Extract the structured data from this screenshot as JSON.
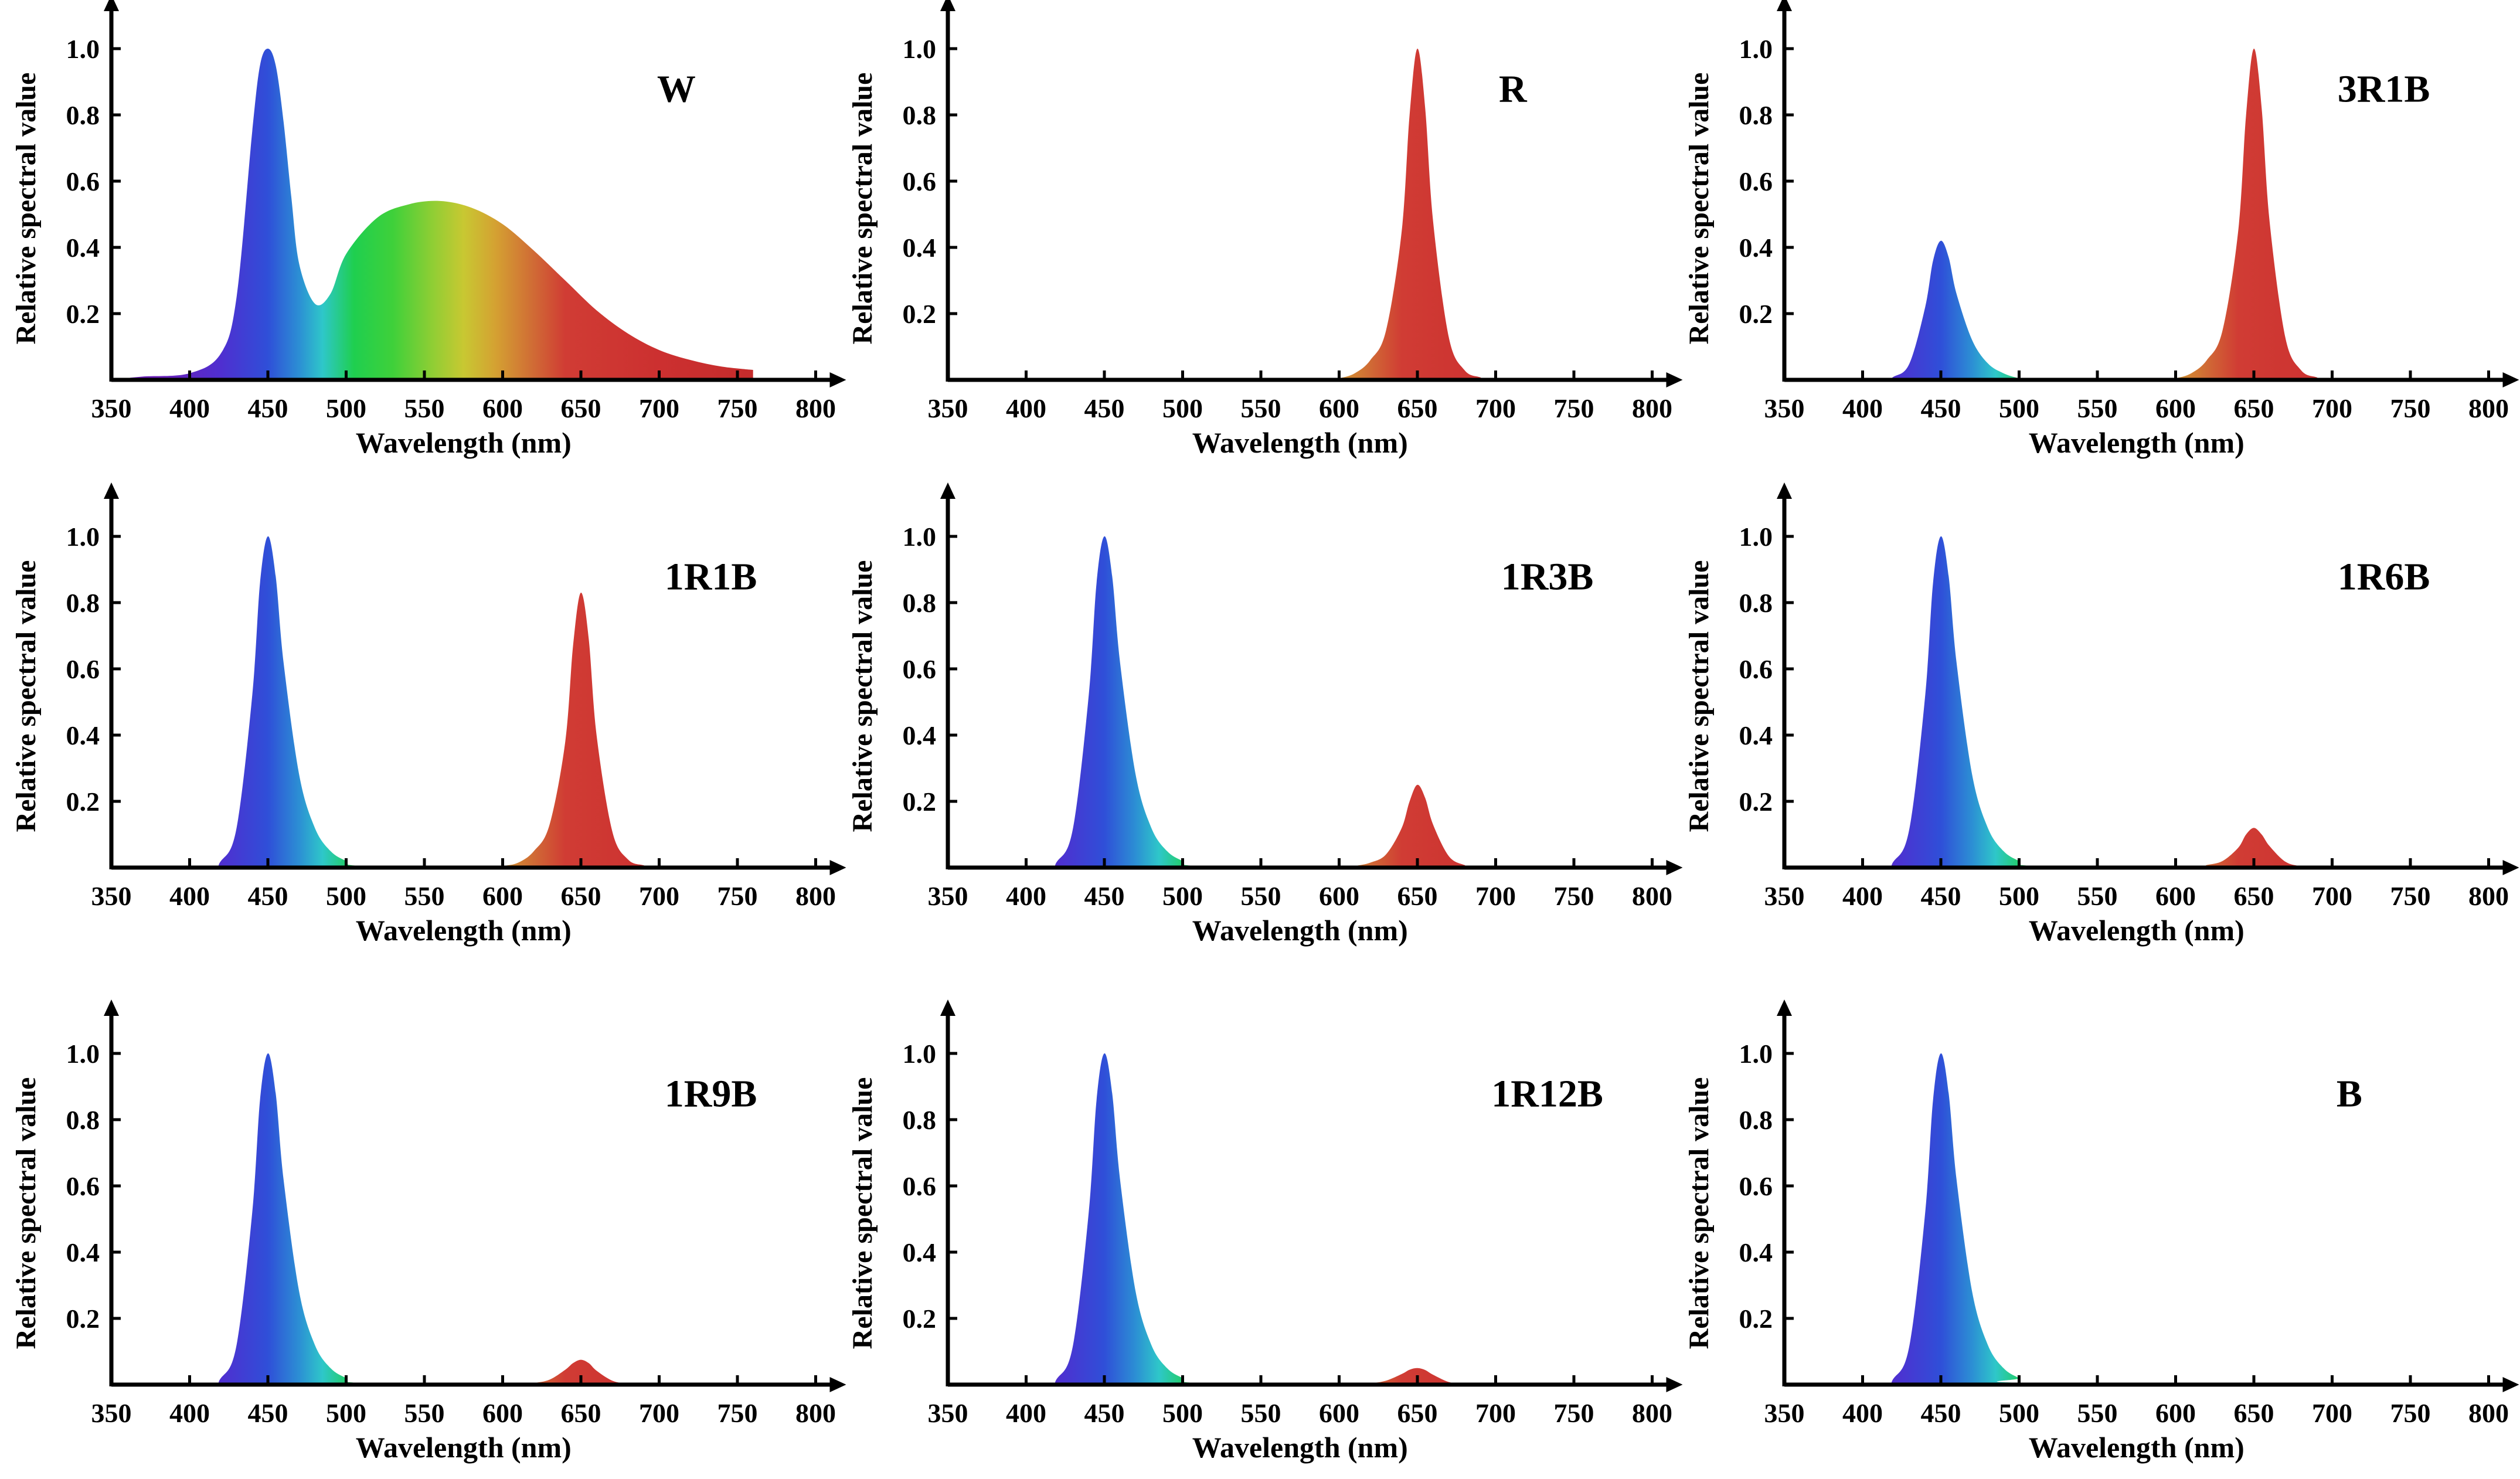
{
  "figure": {
    "colors": {
      "axis": "#000000",
      "spectrum_stops": [
        {
          "nm": 380,
          "color": "#6a1fb8"
        },
        {
          "nm": 420,
          "color": "#4f2fd0"
        },
        {
          "nm": 450,
          "color": "#2f4fd8"
        },
        {
          "nm": 470,
          "color": "#2c8fd4"
        },
        {
          "nm": 485,
          "color": "#2ec7c9"
        },
        {
          "nm": 505,
          "color": "#1fcf4f"
        },
        {
          "nm": 530,
          "color": "#3fd03a"
        },
        {
          "nm": 555,
          "color": "#8fce34"
        },
        {
          "nm": 575,
          "color": "#c8c832"
        },
        {
          "nm": 595,
          "color": "#d4a232"
        },
        {
          "nm": 620,
          "color": "#d06a35"
        },
        {
          "nm": 640,
          "color": "#d03c34"
        },
        {
          "nm": 700,
          "color": "#cc3030"
        },
        {
          "nm": 780,
          "color": "#c22a2a"
        }
      ]
    }
  },
  "chart_data": [
    {
      "type": "area",
      "label": "W",
      "xlabel": "Wavelength (nm)",
      "ylabel": "Relative spectral value",
      "xlim": [
        350,
        800
      ],
      "ylim": [
        0,
        1.08
      ],
      "xticks": [
        "350",
        "400",
        "450",
        "500",
        "550",
        "600",
        "650",
        "700",
        "750",
        "800"
      ],
      "yticks": [
        "0.2",
        "0.4",
        "0.6",
        "0.8",
        "1.0"
      ],
      "x": [
        350,
        370,
        400,
        420,
        430,
        440,
        445,
        450,
        455,
        460,
        465,
        470,
        480,
        490,
        500,
        520,
        540,
        560,
        580,
        600,
        620,
        640,
        660,
        680,
        700,
        720,
        740,
        760
      ],
      "y": [
        0,
        0.01,
        0.02,
        0.08,
        0.25,
        0.75,
        0.95,
        1.0,
        0.95,
        0.78,
        0.55,
        0.35,
        0.23,
        0.26,
        0.38,
        0.49,
        0.53,
        0.54,
        0.52,
        0.47,
        0.39,
        0.3,
        0.21,
        0.14,
        0.09,
        0.06,
        0.04,
        0.03
      ]
    },
    {
      "type": "area",
      "label": "R",
      "xlabel": "Wavelength (nm)",
      "ylabel": "Relative spectral value",
      "xlim": [
        350,
        800
      ],
      "ylim": [
        0,
        1.08
      ],
      "xticks": [
        "350",
        "400",
        "450",
        "500",
        "550",
        "600",
        "650",
        "700",
        "750",
        "800"
      ],
      "yticks": [
        "0.2",
        "0.4",
        "0.6",
        "0.8",
        "1.0"
      ],
      "x": [
        350,
        590,
        600,
        610,
        620,
        630,
        640,
        645,
        650,
        655,
        660,
        670,
        680,
        690,
        700,
        800
      ],
      "y": [
        0,
        0,
        0.005,
        0.02,
        0.06,
        0.15,
        0.45,
        0.8,
        1.0,
        0.82,
        0.48,
        0.13,
        0.03,
        0.008,
        0,
        0
      ]
    },
    {
      "type": "area",
      "label": "3R1B",
      "xlabel": "Wavelength (nm)",
      "ylabel": "Relative spectral value",
      "xlim": [
        350,
        800
      ],
      "ylim": [
        0,
        1.08
      ],
      "xticks": [
        "350",
        "400",
        "450",
        "500",
        "550",
        "600",
        "650",
        "700",
        "750",
        "800"
      ],
      "yticks": [
        "0.2",
        "0.4",
        "0.6",
        "0.8",
        "1.0"
      ],
      "x": [
        350,
        410,
        420,
        430,
        440,
        445,
        450,
        455,
        460,
        470,
        480,
        490,
        500,
        510,
        590,
        600,
        610,
        620,
        630,
        640,
        645,
        650,
        655,
        660,
        670,
        680,
        690,
        700,
        800
      ],
      "y": [
        0,
        0,
        0.01,
        0.05,
        0.22,
        0.36,
        0.42,
        0.37,
        0.26,
        0.12,
        0.05,
        0.02,
        0.005,
        0,
        0,
        0.005,
        0.02,
        0.06,
        0.15,
        0.45,
        0.8,
        1.0,
        0.82,
        0.48,
        0.13,
        0.03,
        0.008,
        0,
        0
      ]
    },
    {
      "type": "area",
      "label": "1R1B",
      "xlabel": "Wavelength (nm)",
      "ylabel": "Relative spectral value",
      "xlim": [
        350,
        800
      ],
      "ylim": [
        0,
        1.08
      ],
      "xticks": [
        "350",
        "400",
        "450",
        "500",
        "550",
        "600",
        "650",
        "700",
        "750",
        "800"
      ],
      "yticks": [
        "0.2",
        "0.4",
        "0.6",
        "0.8",
        "1.0"
      ],
      "x": [
        350,
        410,
        420,
        430,
        440,
        445,
        450,
        455,
        460,
        470,
        480,
        490,
        500,
        510,
        590,
        600,
        610,
        620,
        630,
        640,
        645,
        650,
        655,
        660,
        670,
        680,
        690,
        700,
        800
      ],
      "y": [
        0,
        0,
        0.02,
        0.12,
        0.52,
        0.86,
        1.0,
        0.88,
        0.62,
        0.28,
        0.12,
        0.05,
        0.02,
        0.005,
        0,
        0.005,
        0.015,
        0.05,
        0.13,
        0.38,
        0.67,
        0.83,
        0.69,
        0.4,
        0.11,
        0.025,
        0.007,
        0,
        0
      ]
    },
    {
      "type": "area",
      "label": "1R3B",
      "xlabel": "Wavelength (nm)",
      "ylabel": "Relative spectral value",
      "xlim": [
        350,
        800
      ],
      "ylim": [
        0,
        1.08
      ],
      "xticks": [
        "350",
        "400",
        "450",
        "500",
        "550",
        "600",
        "650",
        "700",
        "750",
        "800"
      ],
      "yticks": [
        "0.2",
        "0.4",
        "0.6",
        "0.8",
        "1.0"
      ],
      "x": [
        350,
        410,
        420,
        430,
        440,
        445,
        450,
        455,
        460,
        470,
        480,
        490,
        500,
        510,
        600,
        610,
        620,
        630,
        640,
        645,
        650,
        655,
        660,
        670,
        680,
        690,
        800
      ],
      "y": [
        0,
        0,
        0.02,
        0.12,
        0.52,
        0.86,
        1.0,
        0.88,
        0.62,
        0.28,
        0.12,
        0.05,
        0.02,
        0.005,
        0,
        0.005,
        0.015,
        0.04,
        0.12,
        0.2,
        0.25,
        0.21,
        0.13,
        0.035,
        0.008,
        0,
        0
      ]
    },
    {
      "type": "area",
      "label": "1R6B",
      "xlabel": "Wavelength (nm)",
      "ylabel": "Relative spectral value",
      "xlim": [
        350,
        800
      ],
      "ylim": [
        0,
        1.08
      ],
      "xticks": [
        "350",
        "400",
        "450",
        "500",
        "550",
        "600",
        "650",
        "700",
        "750",
        "800"
      ],
      "yticks": [
        "0.2",
        "0.4",
        "0.6",
        "0.8",
        "1.0"
      ],
      "x": [
        350,
        410,
        420,
        430,
        440,
        445,
        450,
        455,
        460,
        470,
        480,
        490,
        500,
        510,
        610,
        620,
        630,
        640,
        645,
        650,
        655,
        660,
        670,
        680,
        690,
        800
      ],
      "y": [
        0,
        0,
        0.02,
        0.12,
        0.52,
        0.86,
        1.0,
        0.88,
        0.62,
        0.28,
        0.12,
        0.05,
        0.02,
        0.005,
        0,
        0.008,
        0.02,
        0.06,
        0.1,
        0.12,
        0.1,
        0.065,
        0.018,
        0.004,
        0,
        0
      ]
    },
    {
      "type": "area",
      "label": "1R9B",
      "xlabel": "Wavelength (nm)",
      "ylabel": "Relative spectral value",
      "xlim": [
        350,
        800
      ],
      "ylim": [
        0,
        1.08
      ],
      "xticks": [
        "350",
        "400",
        "450",
        "500",
        "550",
        "600",
        "650",
        "700",
        "750",
        "800"
      ],
      "yticks": [
        "0.2",
        "0.4",
        "0.6",
        "0.8",
        "1.0"
      ],
      "x": [
        350,
        410,
        420,
        430,
        440,
        445,
        450,
        455,
        460,
        470,
        480,
        490,
        500,
        510,
        610,
        620,
        630,
        640,
        645,
        650,
        655,
        660,
        670,
        680,
        690,
        800
      ],
      "y": [
        0,
        0,
        0.02,
        0.12,
        0.52,
        0.86,
        1.0,
        0.88,
        0.62,
        0.28,
        0.12,
        0.05,
        0.02,
        0.005,
        0,
        0.005,
        0.015,
        0.045,
        0.065,
        0.075,
        0.065,
        0.042,
        0.012,
        0.003,
        0,
        0
      ]
    },
    {
      "type": "area",
      "label": "1R12B",
      "xlabel": "Wavelength (nm)",
      "ylabel": "Relative spectral value",
      "xlim": [
        350,
        800
      ],
      "ylim": [
        0,
        1.08
      ],
      "xticks": [
        "350",
        "400",
        "450",
        "500",
        "550",
        "600",
        "650",
        "700",
        "750",
        "800"
      ],
      "yticks": [
        "0.2",
        "0.4",
        "0.6",
        "0.8",
        "1.0"
      ],
      "x": [
        350,
        410,
        420,
        430,
        440,
        445,
        450,
        455,
        460,
        470,
        480,
        490,
        500,
        510,
        610,
        620,
        630,
        640,
        645,
        650,
        655,
        660,
        670,
        680,
        690,
        800
      ],
      "y": [
        0,
        0,
        0.02,
        0.12,
        0.52,
        0.86,
        1.0,
        0.88,
        0.62,
        0.28,
        0.12,
        0.05,
        0.02,
        0.005,
        0,
        0.004,
        0.012,
        0.032,
        0.045,
        0.05,
        0.044,
        0.03,
        0.008,
        0.002,
        0,
        0
      ]
    },
    {
      "type": "area",
      "label": "B",
      "xlabel": "Wavelength (nm)",
      "ylabel": "Relative spectral value",
      "xlim": [
        350,
        800
      ],
      "ylim": [
        0,
        1.08
      ],
      "xticks": [
        "350",
        "400",
        "450",
        "500",
        "550",
        "600",
        "650",
        "700",
        "750",
        "800"
      ],
      "yticks": [
        "0.2",
        "0.4",
        "0.6",
        "0.8",
        "1.0"
      ],
      "x": [
        350,
        410,
        420,
        430,
        440,
        445,
        450,
        455,
        460,
        470,
        480,
        490,
        500,
        510,
        800
      ],
      "y": [
        0,
        0,
        0.02,
        0.12,
        0.52,
        0.86,
        1.0,
        0.88,
        0.62,
        0.28,
        0.12,
        0.05,
        0.02,
        0.005,
        0
      ]
    }
  ]
}
